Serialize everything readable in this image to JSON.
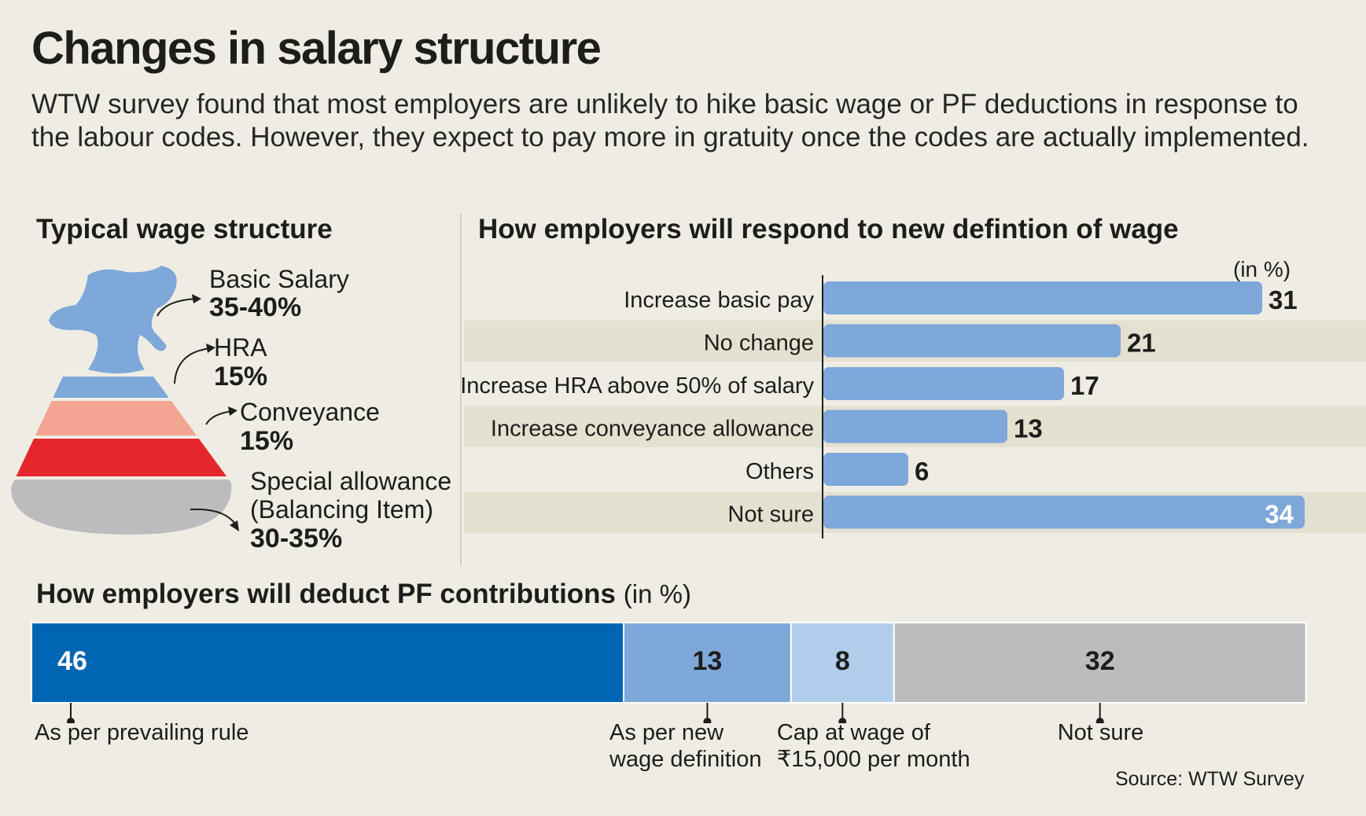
{
  "title": "Changes in salary structure",
  "subtitle": "WTW survey found that most employers are unlikely to hike basic wage or PF deductions in response to the labour codes. However, they expect to pay more in gratuity once the codes are actually implemented.",
  "source": "Source: WTW Survey",
  "colors": {
    "background": "#efede3",
    "bar_blue": "#7ea7da",
    "stripe": "#e4e1d1",
    "bag_blue": "#7ea7da",
    "bag_salmon": "#f4a592",
    "bag_red": "#e5262d",
    "bag_grey": "#bcbcbe",
    "pf_dark_blue": "#0066b3",
    "pf_mid_blue": "#7ea7da",
    "pf_light_blue": "#b0cdec",
    "pf_grey": "#bcbcbe"
  },
  "chart_data": [
    {
      "type": "pie",
      "title": "Typical wage structure",
      "categories": [
        "Basic Salary",
        "HRA",
        "Conveyance",
        "Special allowance (Balancing Item)"
      ],
      "value_labels": [
        "35-40%",
        "15%",
        "15%",
        "30-35%"
      ],
      "special_label_lines": [
        "Special allowance",
        "(Balancing Item)"
      ],
      "colors": [
        "#7ea7da",
        "#f4a592",
        "#e5262d",
        "#bcbcbe"
      ]
    },
    {
      "type": "bar",
      "orientation": "horizontal",
      "title": "How employers will respond to new defintion of wage",
      "unit_note": "(in %)",
      "categories": [
        "Increase basic pay",
        "No change",
        "Increase HRA above 50% of salary",
        "Increase conveyance allowance",
        "Others",
        "Not sure"
      ],
      "values": [
        31,
        21,
        17,
        13,
        6,
        34
      ]
    },
    {
      "type": "bar",
      "orientation": "horizontal",
      "stacked": true,
      "title": "How employers will deduct PF contributions",
      "unit_note": "(in %)",
      "categories": [
        "As per prevailing rule",
        "As per new wage definition",
        "Cap at wage of ₹15,000 per month",
        "Not sure"
      ],
      "label_lines": [
        [
          "As per prevailing rule"
        ],
        [
          "As per new",
          "wage definition"
        ],
        [
          "Cap at wage of",
          "₹15,000 per month"
        ],
        [
          "Not sure"
        ]
      ],
      "values": [
        46,
        13,
        8,
        32
      ],
      "colors": [
        "#0066b3",
        "#7ea7da",
        "#b0cdec",
        "#bcbcbe"
      ]
    }
  ]
}
